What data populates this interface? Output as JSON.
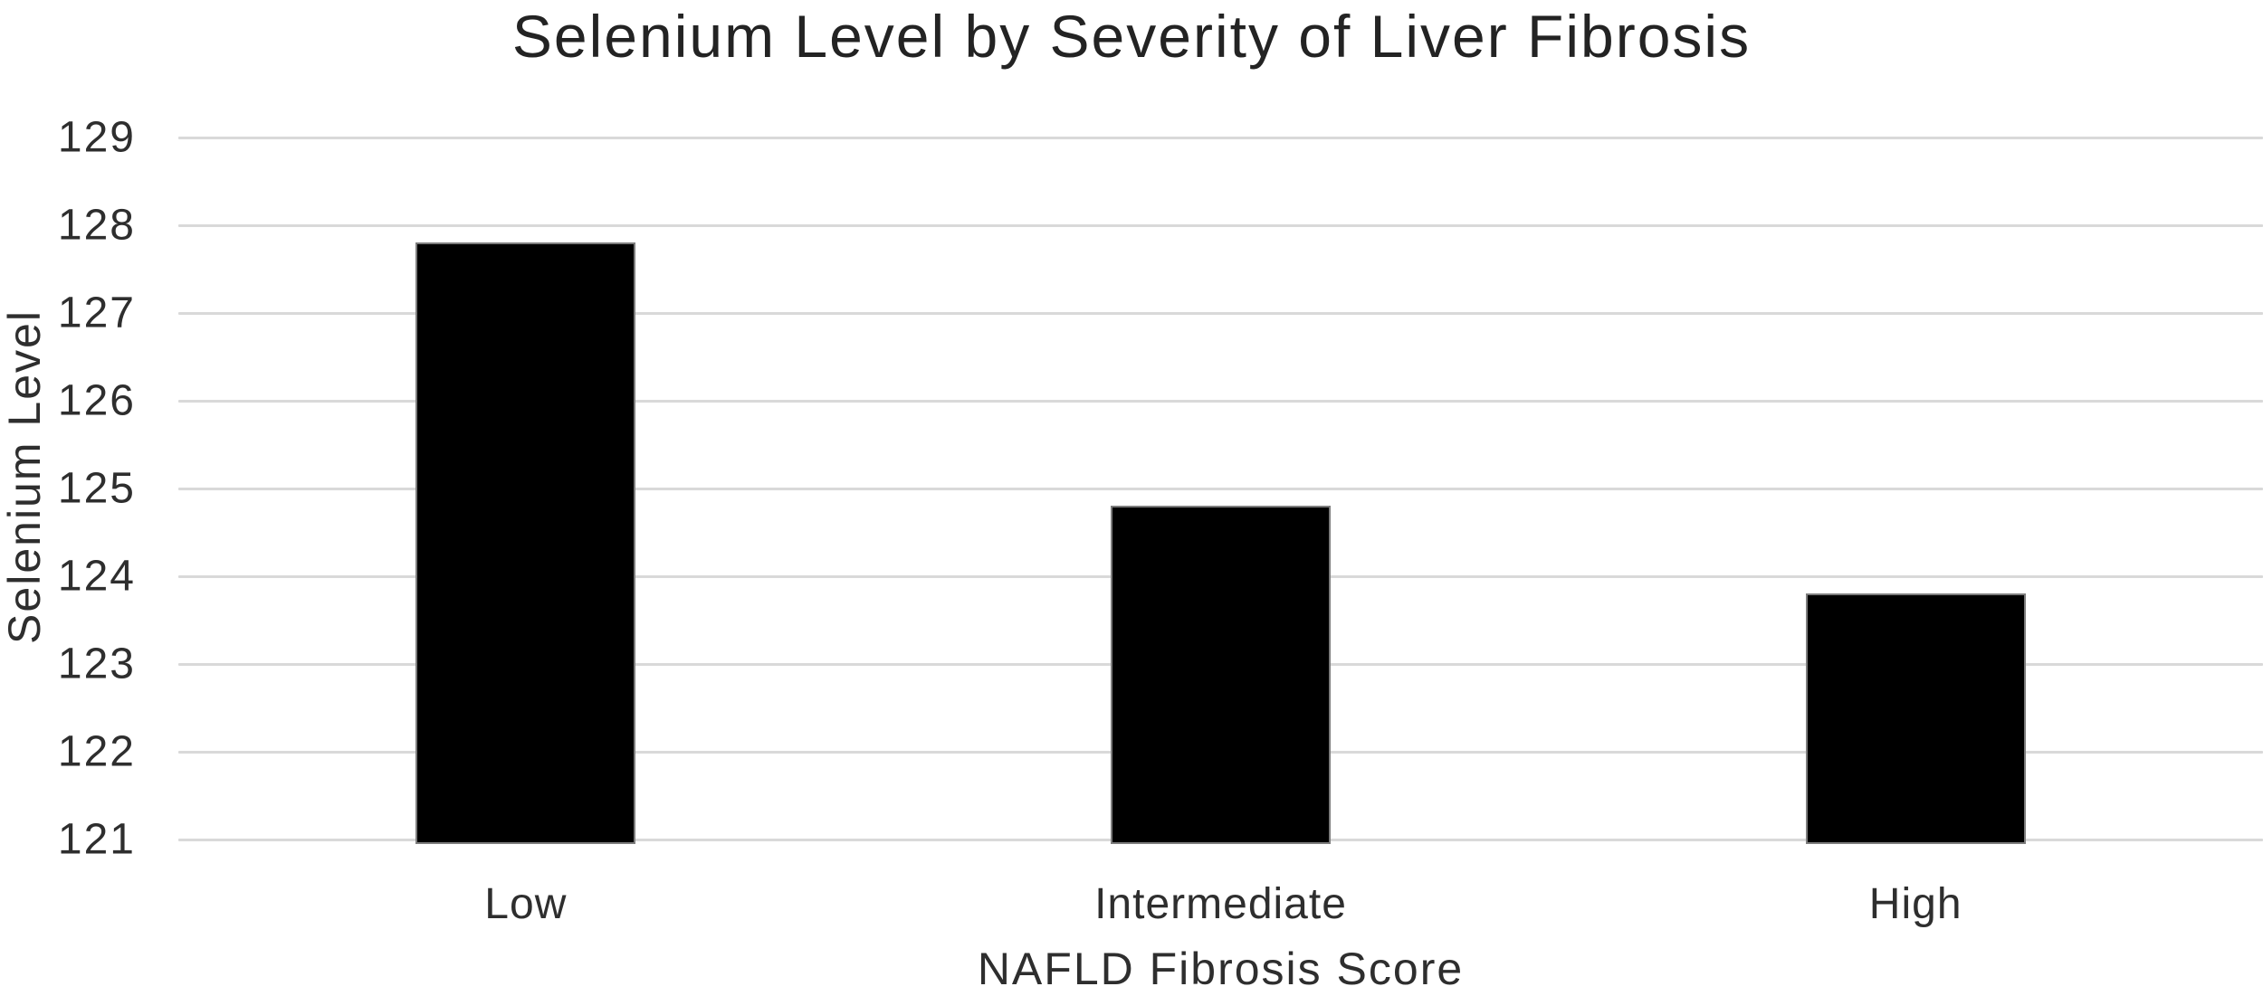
{
  "chart_data": {
    "type": "bar",
    "title": "Selenium Level by Severity of Liver Fibrosis",
    "xlabel": "NAFLD Fibrosis Score",
    "ylabel": "Selenium Level",
    "categories": [
      "Low",
      "Intermediate",
      "High"
    ],
    "values": [
      127.8,
      124.8,
      123.8
    ],
    "ylim": [
      121,
      129
    ],
    "yticks": [
      121,
      122,
      123,
      124,
      125,
      126,
      127,
      128,
      129
    ],
    "grid": "horizontal",
    "legend": "none",
    "bar_color": "#000000",
    "gridline_color": "#d9d9d9",
    "text_color": "#2e2e2e",
    "title_color": "#232323",
    "background_color": "#ffffff"
  }
}
